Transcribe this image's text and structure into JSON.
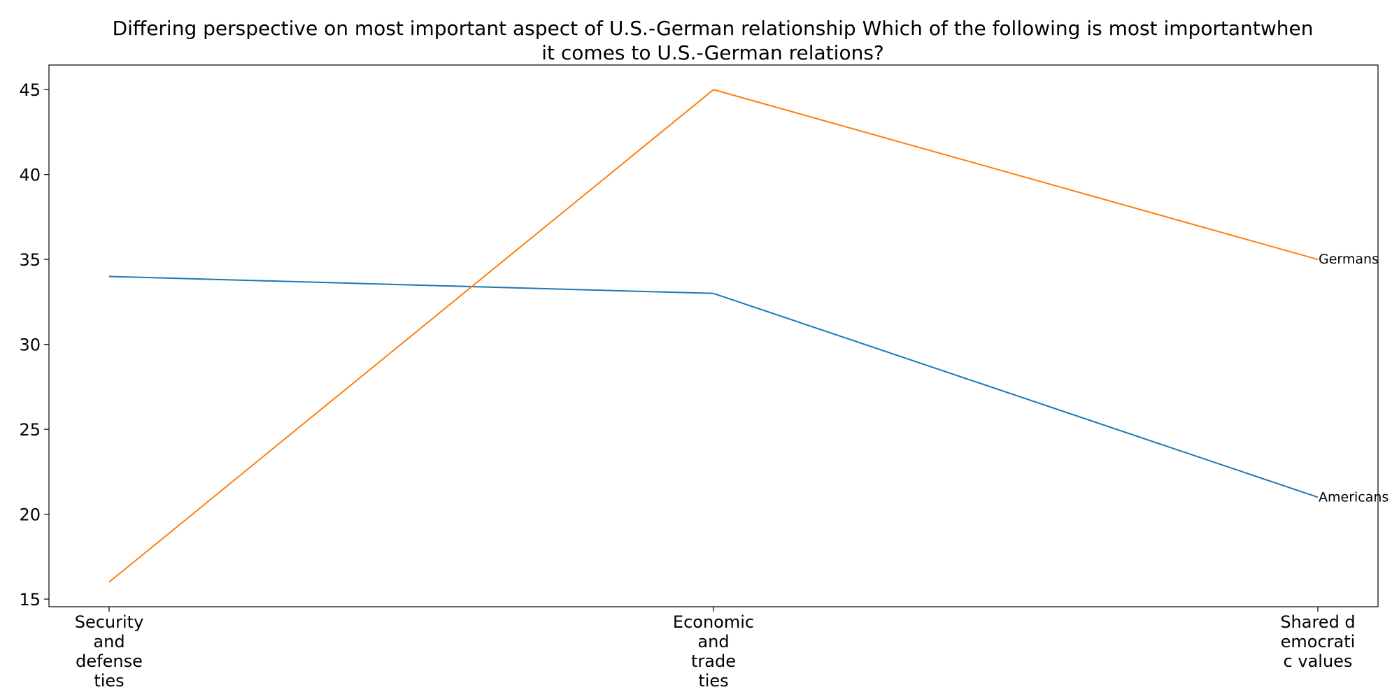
{
  "chart_data": {
    "type": "line",
    "title": "Differing perspective on most important aspect of U.S.-German relationship Which of the following is most importantwhen it comes to U.S.-German relations?",
    "title_lines": [
      "Differing perspective on most important aspect of U.S.-German relationship Which of the following is most importantwhen",
      "it comes to U.S.-German relations?"
    ],
    "categories": [
      "Security and defense ties",
      "Economic and trade ties",
      "Shared democratic values"
    ],
    "category_label_lines": [
      [
        "Security",
        "and",
        "defense",
        "ties"
      ],
      [
        "Economic",
        "and",
        "trade",
        "ties"
      ],
      [
        "Shared d",
        "emocrati",
        "c values"
      ]
    ],
    "series": [
      {
        "name": "Americans",
        "values": [
          34,
          33,
          21
        ],
        "color": "#1f77b4"
      },
      {
        "name": "Germans",
        "values": [
          16,
          45,
          35
        ],
        "color": "#ff7f0e"
      }
    ],
    "yticks": [
      15,
      20,
      25,
      30,
      35,
      40,
      45
    ],
    "ylim": [
      14.55,
      46.45
    ],
    "grid": false,
    "legend": "none; series names annotated at the end of each line"
  }
}
